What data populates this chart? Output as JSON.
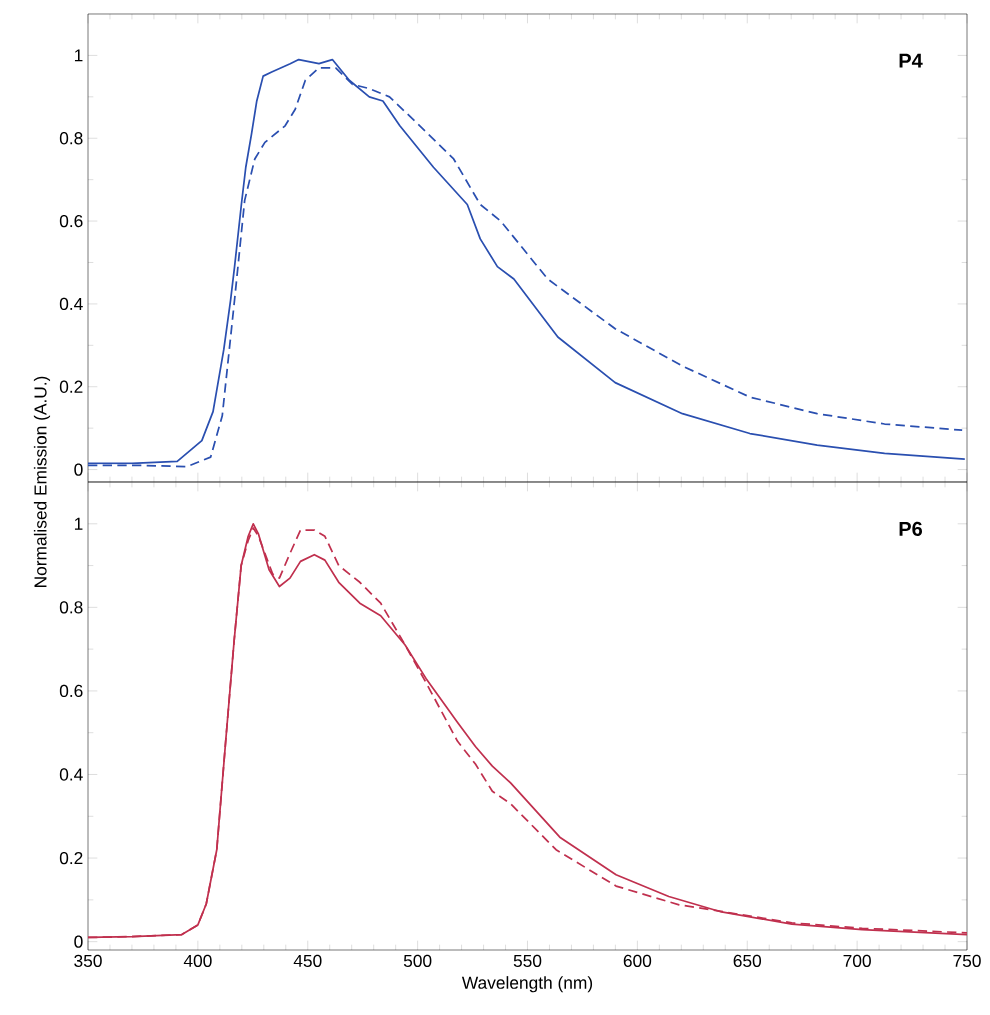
{
  "chart_data": [
    {
      "type": "line",
      "ylabel": "Normalised Emission (A.U.)",
      "annotations": [
        "P4"
      ],
      "xlim": [
        350,
        750
      ],
      "xticks": [
        350,
        400,
        450,
        500,
        550,
        600,
        650,
        700,
        750
      ],
      "ylim": [
        -0.03,
        1.1
      ],
      "yticks": [
        0,
        0.2,
        0.4,
        0.6,
        0.8,
        1
      ],
      "tick_labels": "y",
      "series": [
        {
          "color": "#2a4fb0",
          "line_style": "solid",
          "x": [
            350,
            370,
            390.6,
            401.8,
            406.9,
            411.8,
            414.9,
            416.7,
            419.8,
            421.8,
            424.4,
            426.8,
            429.7,
            433.6,
            442,
            445.9,
            455.1,
            461.2,
            468.9,
            478,
            484.2,
            491.9,
            507.2,
            522.6,
            528.5,
            536.3,
            543.8,
            563.8,
            589.9,
            620.5,
            651.2,
            681.8,
            712.5,
            749
          ],
          "values": [
            0.015,
            0.015,
            0.02,
            0.07,
            0.14,
            0.29,
            0.41,
            0.49,
            0.64,
            0.73,
            0.81,
            0.89,
            0.95,
            0.96,
            0.98,
            0.99,
            0.98,
            0.99,
            0.94,
            0.9,
            0.89,
            0.83,
            0.73,
            0.64,
            0.557,
            0.49,
            0.46,
            0.32,
            0.21,
            0.135,
            0.087,
            0.059,
            0.039,
            0.025
          ]
        },
        {
          "color": "#2a4fb0",
          "line_style": "dashed",
          "x": [
            350,
            375,
            395,
            405.8,
            411.1,
            416.7,
            421.3,
            425.9,
            430.5,
            439.7,
            444.3,
            448.9,
            455.1,
            462.7,
            470.4,
            478,
            487.2,
            501,
            516.4,
            528.5,
            537.8,
            559.2,
            589.9,
            620.5,
            651.2,
            681.8,
            712.5,
            747.8
          ],
          "values": [
            0.01,
            0.01,
            0.007,
            0.03,
            0.13,
            0.41,
            0.65,
            0.75,
            0.79,
            0.83,
            0.87,
            0.94,
            0.97,
            0.97,
            0.93,
            0.92,
            0.9,
            0.83,
            0.75,
            0.64,
            0.6,
            0.46,
            0.34,
            0.25,
            0.175,
            0.135,
            0.11,
            0.095
          ]
        }
      ]
    },
    {
      "type": "line",
      "xlabel": "Wavelength (nm)",
      "annotations": [
        "P6"
      ],
      "xlim": [
        350,
        750
      ],
      "xticks": [
        350,
        400,
        450,
        500,
        550,
        600,
        650,
        700,
        750
      ],
      "ylim": [
        -0.02,
        1.1
      ],
      "yticks": [
        0,
        0.2,
        0.4,
        0.6,
        0.8,
        1
      ],
      "series": [
        {
          "color": "#c0304e",
          "line_style": "solid",
          "x": [
            350,
            370,
            392.7,
            400,
            403.8,
            408.6,
            412.5,
            416.5,
            419.7,
            422.9,
            425.2,
            427.6,
            432.4,
            437.1,
            441.9,
            446.7,
            453,
            457.8,
            464.1,
            473.7,
            483.2,
            494.3,
            503.8,
            518.1,
            526.3,
            534,
            542.3,
            564.7,
            590.3,
            614.3,
            638.3,
            670.3,
            702.3,
            750
          ],
          "values": [
            0.01,
            0.012,
            0.017,
            0.04,
            0.09,
            0.22,
            0.47,
            0.72,
            0.9,
            0.97,
            1,
            0.975,
            0.89,
            0.85,
            0.87,
            0.91,
            0.926,
            0.913,
            0.86,
            0.81,
            0.78,
            0.71,
            0.63,
            0.525,
            0.467,
            0.42,
            0.38,
            0.25,
            0.16,
            0.108,
            0.071,
            0.042,
            0.029,
            0.017
          ]
        },
        {
          "color": "#c0304e",
          "line_style": "dashed",
          "x": [
            350,
            370,
            392.7,
            400,
            403.8,
            408.6,
            412.5,
            416.5,
            419.7,
            422.9,
            425.2,
            427.6,
            434,
            437.1,
            442,
            446.7,
            453,
            457.8,
            464.1,
            473.7,
            483.2,
            494.3,
            503.8,
            518.1,
            526.3,
            534,
            542.3,
            563,
            590.3,
            619,
            630.3,
            670.3,
            702.3,
            750
          ],
          "values": [
            0.01,
            0.012,
            0.017,
            0.04,
            0.09,
            0.22,
            0.47,
            0.72,
            0.9,
            0.96,
            0.99,
            0.97,
            0.88,
            0.87,
            0.93,
            0.985,
            0.985,
            0.97,
            0.9,
            0.86,
            0.81,
            0.71,
            0.62,
            0.48,
            0.425,
            0.36,
            0.33,
            0.22,
            0.133,
            0.088,
            0.079,
            0.045,
            0.032,
            0.021
          ]
        }
      ]
    }
  ]
}
